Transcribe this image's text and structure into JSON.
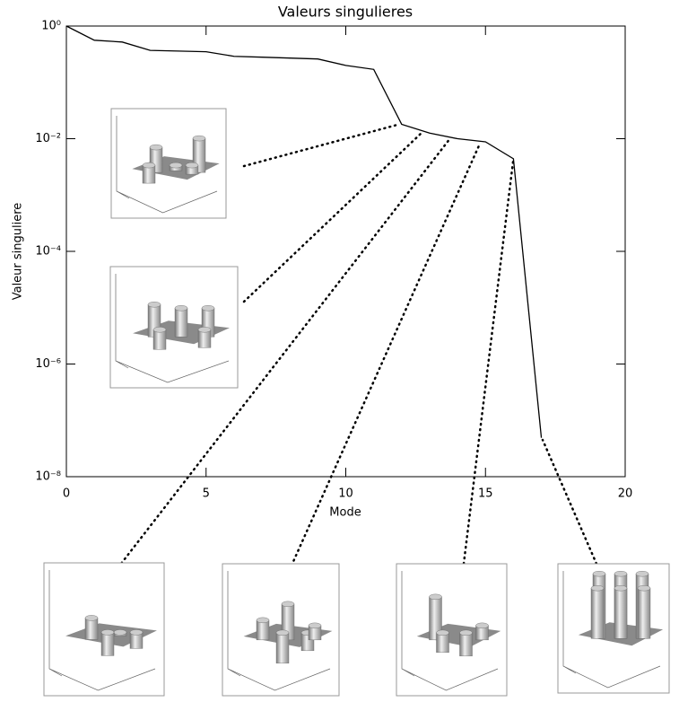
{
  "chart_data": {
    "type": "line",
    "title": "Valeurs singulieres",
    "x_label": "Mode",
    "y_label": "Valeur singuliere",
    "x": [
      0,
      1,
      2,
      3,
      4,
      5,
      6,
      7,
      8,
      9,
      10,
      11,
      12,
      13,
      14,
      15,
      16,
      17
    ],
    "series": [
      {
        "color": "#000000",
        "values": [
          1.0,
          0.56,
          0.52,
          0.37,
          0.36,
          0.35,
          0.29,
          0.28,
          0.27,
          0.26,
          0.2,
          0.17,
          0.018,
          0.0126,
          0.01,
          0.0088,
          0.0044,
          4.9e-08
        ]
      }
    ],
    "xlim": [
      0,
      20
    ],
    "xticks": [
      0,
      5,
      10,
      15,
      20
    ],
    "ylim": [
      1e-08,
      1
    ],
    "y_scale": "log",
    "yticks": [
      {
        "value": 1,
        "label": "10⁰"
      },
      {
        "value": 0.01,
        "label": "10⁻²"
      },
      {
        "value": 0.0001,
        "label": "10⁻⁴"
      },
      {
        "value": 1e-06,
        "label": "10⁻⁶"
      },
      {
        "value": 1e-08,
        "label": "10⁻⁸"
      }
    ],
    "grid": false
  }
}
